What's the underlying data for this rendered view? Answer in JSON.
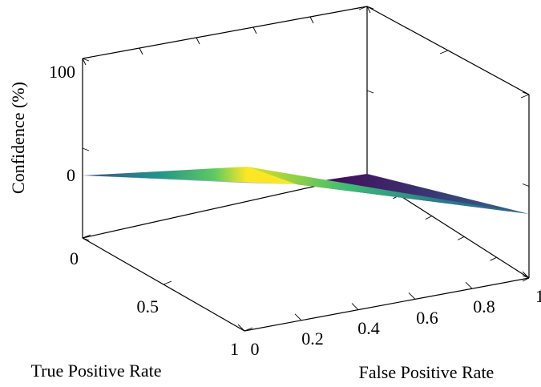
{
  "chart_data": {
    "type": "surface",
    "xlabel": "False Positive Rate",
    "ylabel": "True Positive Rate",
    "zlabel": "Confidence (%)",
    "x_ticks": [
      "0",
      "0.2",
      "0.4",
      "0.6",
      "0.8",
      "1"
    ],
    "y_ticks": [
      "0",
      "0.5",
      "1"
    ],
    "z_ticks": [
      "0",
      "100"
    ],
    "xlim": [
      0,
      1
    ],
    "ylim": [
      0,
      1
    ],
    "zlim": [
      -100,
      100
    ],
    "surface_corners": [
      {
        "x": 0,
        "y": 0,
        "z": 0
      },
      {
        "x": 1,
        "y": 0,
        "z": 0
      },
      {
        "x": 0,
        "y": 1,
        "z": 100
      },
      {
        "x": 1,
        "y": 1,
        "z": 0
      }
    ],
    "colormap": [
      "#440154",
      "#3b528b",
      "#21918c",
      "#5ec962",
      "#fde725"
    ]
  }
}
